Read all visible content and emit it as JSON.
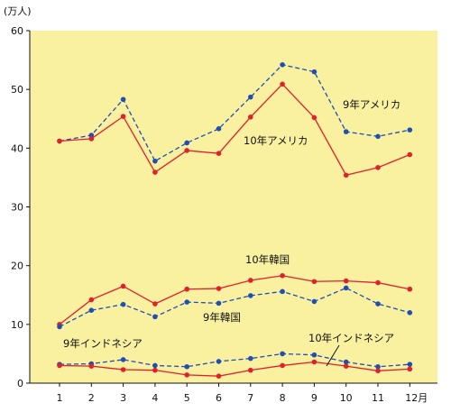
{
  "chart_data": {
    "type": "line",
    "ylabel": "(万人)",
    "ylim": [
      0,
      60
    ],
    "yticks": [
      0,
      10,
      20,
      30,
      40,
      50,
      60
    ],
    "categories": [
      "1",
      "2",
      "3",
      "4",
      "5",
      "6",
      "7",
      "8",
      "9",
      "10",
      "11",
      "12月"
    ],
    "grid": false,
    "background_color": "#f9f0a0",
    "series": [
      {
        "name": "9年アメリカ",
        "color": "#1f4fb5",
        "dashed": true,
        "values": [
          41.2,
          42.2,
          48.3,
          37.8,
          40.9,
          43.3,
          48.7,
          54.2,
          53.0,
          42.8,
          42.0,
          43.1
        ]
      },
      {
        "name": "10年アメリカ",
        "color": "#e0202a",
        "dashed": false,
        "values": [
          41.2,
          41.6,
          45.4,
          35.9,
          39.6,
          39.1,
          45.3,
          50.9,
          45.2,
          35.4,
          36.7,
          38.9
        ]
      },
      {
        "name": "10年韓国",
        "color": "#e0202a",
        "dashed": false,
        "values": [
          10.0,
          14.2,
          16.5,
          13.5,
          16.0,
          16.1,
          17.5,
          18.3,
          17.3,
          17.4,
          17.1,
          16.0
        ]
      },
      {
        "name": "9年韓国",
        "color": "#1f4fb5",
        "dashed": true,
        "values": [
          9.6,
          12.4,
          13.4,
          11.3,
          13.8,
          13.6,
          14.9,
          15.6,
          13.9,
          16.2,
          13.5,
          12.0
        ]
      },
      {
        "name": "9年インドネシア",
        "color": "#1f4fb5",
        "dashed": true,
        "values": [
          3.2,
          3.3,
          4.0,
          3.0,
          2.8,
          3.7,
          4.2,
          5.0,
          4.8,
          3.6,
          2.8,
          3.2
        ]
      },
      {
        "name": "10年インドネシア",
        "color": "#e0202a",
        "dashed": false,
        "values": [
          3.0,
          2.9,
          2.3,
          2.2,
          1.4,
          1.2,
          2.2,
          3.0,
          3.6,
          2.9,
          2.1,
          2.4
        ]
      }
    ]
  }
}
